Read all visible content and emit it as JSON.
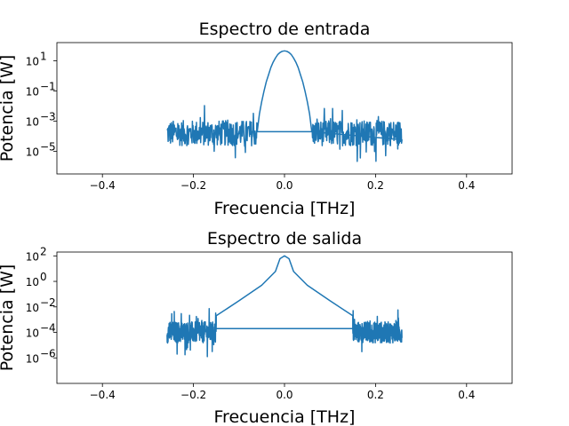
{
  "chart_data": [
    {
      "type": "line",
      "title": "Espectro de entrada",
      "xlabel": "Frecuencia [THz]",
      "ylabel": "Potencia [W]",
      "xlim": [
        -0.5,
        0.5
      ],
      "ylim_log10": [
        -6.5,
        2.2
      ],
      "yscale": "log",
      "xticks": [
        -0.4,
        -0.2,
        0.0,
        0.2,
        0.4
      ],
      "xtick_labels": [
        "−0.4",
        "−0.2",
        "0.0",
        "0.2",
        "0.4"
      ],
      "yticks_exp": [
        -5,
        -3,
        -1,
        1
      ],
      "ytick_labels": [
        "10",
        "10",
        "10",
        "10"
      ],
      "ytick_exp_labels": [
        "−5",
        "−3",
        "−1",
        "1"
      ],
      "color": "#1f77b4",
      "series": [
        {
          "x": [
            -0.258,
            -0.06,
            -0.055,
            -0.05,
            -0.045,
            -0.04,
            -0.035,
            -0.03,
            -0.025,
            -0.02,
            -0.015,
            -0.01,
            -0.005,
            0.0,
            0.005,
            0.01,
            0.015,
            0.02,
            0.025,
            0.03,
            0.035,
            0.04,
            0.045,
            0.05,
            0.055,
            0.06,
            0.258
          ],
          "y": [
            0.0001,
            0.0002,
            0.003,
            0.02,
            0.1,
            0.4,
            1.2,
            3.5,
            8,
            15,
            25,
            35,
            42,
            45,
            42,
            35,
            25,
            15,
            8,
            3.5,
            1.2,
            0.4,
            0.1,
            0.02,
            0.003,
            0.0002,
            0.0001
          ]
        }
      ],
      "noise_band": {
        "x_range": [
          -0.258,
          0.258
        ],
        "gap": [
          -0.06,
          0.06
        ],
        "y_center_log10": -3.8,
        "y_spread_log10": 1.2,
        "floor_log10": -3.7
      }
    },
    {
      "type": "line",
      "title": "Espectro de salida",
      "xlabel": "Frecuencia [THz]",
      "ylabel": "Potencia [W]",
      "xlim": [
        -0.5,
        0.5
      ],
      "ylim_log10": [
        -8,
        2.3
      ],
      "yscale": "log",
      "xticks": [
        -0.4,
        -0.2,
        0.0,
        0.2,
        0.4
      ],
      "xtick_labels": [
        "−0.4",
        "−0.2",
        "0.0",
        "0.2",
        "0.4"
      ],
      "yticks_exp": [
        -6,
        -4,
        -2,
        0,
        2
      ],
      "ytick_labels": [
        "10",
        "10",
        "10",
        "10",
        "10"
      ],
      "ytick_exp_labels": [
        "−6",
        "−4",
        "−2",
        "0",
        "2"
      ],
      "color": "#1f77b4",
      "series": [
        {
          "x": [
            -0.25,
            -0.2,
            -0.15,
            -0.1,
            -0.05,
            -0.02,
            -0.01,
            0.0,
            0.01,
            0.02,
            0.05,
            0.1,
            0.15,
            0.2,
            0.25
          ],
          "y": [
            0.0001,
            0.0003,
            0.002,
            0.03,
            0.5,
            6,
            60,
            100,
            60,
            6,
            0.5,
            0.03,
            0.002,
            0.0003,
            0.0001
          ]
        }
      ],
      "noise_band": {
        "x_range": [
          -0.258,
          0.258
        ],
        "gap": [
          -0.15,
          0.15
        ],
        "y_center_log10": -4.0,
        "y_spread_log10": 1.2,
        "floor_log10": -3.7
      }
    }
  ]
}
